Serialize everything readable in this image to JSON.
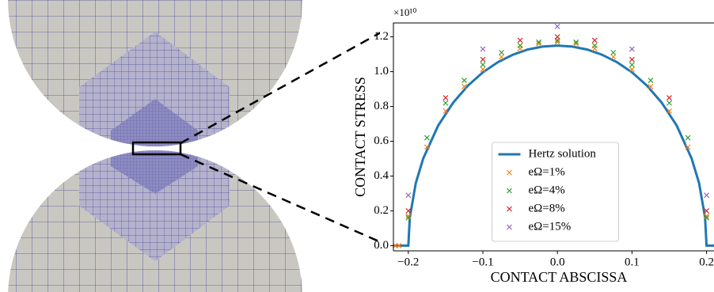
{
  "chart_data": {
    "type": "line",
    "xlabel": "CONTACT ABSCISSA",
    "ylabel": "CONTACT STRESS",
    "y_offset_label": "×10¹⁰",
    "xlim": [
      -0.22,
      0.21
    ],
    "ylim": [
      -0.03,
      1.28
    ],
    "xticks": [
      {
        "value": -0.2,
        "label": "−0.2"
      },
      {
        "value": -0.1,
        "label": "−0.1"
      },
      {
        "value": 0,
        "label": "0.0"
      },
      0.1,
      0.2
    ],
    "yticks": [
      {
        "value": 0,
        "label": "0.0"
      },
      0.2,
      0.4,
      0.6,
      0.8,
      {
        "value": 1,
        "label": "1.0"
      },
      1.2
    ],
    "legend": "lower center",
    "series": [
      {
        "name": "Hertz solution",
        "color": "#1f77b4",
        "style": "line",
        "x": [
          -0.22,
          -0.2,
          -0.198,
          -0.19,
          -0.18,
          -0.16,
          -0.14,
          -0.12,
          -0.1,
          -0.08,
          -0.06,
          -0.04,
          -0.02,
          0,
          0.02,
          0.04,
          0.06,
          0.08,
          0.1,
          0.12,
          0.14,
          0.16,
          0.18,
          0.19,
          0.198,
          0.2,
          0.21
        ],
        "values": [
          0,
          0,
          0.162,
          0.359,
          0.501,
          0.69,
          0.821,
          0.92,
          0.996,
          1.054,
          1.097,
          1.127,
          1.144,
          1.15,
          1.144,
          1.127,
          1.097,
          1.054,
          0.996,
          0.92,
          0.821,
          0.69,
          0.501,
          0.359,
          0.162,
          0,
          0
        ]
      },
      {
        "name": "eΩ=1%",
        "color": "#ff7f0e",
        "style": "x",
        "x": [
          -0.2175,
          -0.2125,
          -0.2,
          -0.175,
          -0.15,
          -0.125,
          -0.1,
          -0.075,
          -0.05,
          -0.025,
          0,
          0.025,
          0.05,
          0.075,
          0.1,
          0.125,
          0.15,
          0.175,
          0.2
        ],
        "values": [
          0,
          0,
          0.17,
          0.567,
          0.774,
          0.914,
          1.013,
          1.085,
          1.133,
          1.161,
          1.17,
          1.161,
          1.133,
          1.085,
          1.013,
          0.914,
          0.774,
          0.567,
          0.17
        ]
      },
      {
        "name": "eΩ=4%",
        "color": "#2ca02c",
        "style": "x",
        "x": [
          -0.2,
          -0.175,
          -0.15,
          -0.125,
          -0.1,
          -0.075,
          -0.05,
          -0.025,
          0,
          0.025,
          0.05,
          0.075,
          0.1,
          0.125,
          0.15,
          0.175,
          0.2
        ],
        "values": [
          0.16,
          0.62,
          0.82,
          0.95,
          1.04,
          1.11,
          1.15,
          1.17,
          1.18,
          1.17,
          1.15,
          1.11,
          1.04,
          0.95,
          0.82,
          0.62,
          0.16
        ]
      },
      {
        "name": "eΩ=8%",
        "color": "#d62728",
        "style": "x",
        "x": [
          -0.2,
          -0.15,
          -0.1,
          -0.05,
          0,
          0.05,
          0.1,
          0.15,
          0.2
        ],
        "values": [
          0.2,
          0.85,
          1.07,
          1.18,
          1.2,
          1.18,
          1.07,
          0.85,
          0.2
        ]
      },
      {
        "name": "eΩ=15%",
        "color": "#9467bd",
        "style": "x",
        "x": [
          -0.2,
          -0.1,
          0,
          0.1,
          0.2
        ],
        "values": [
          0.29,
          1.13,
          1.26,
          1.13,
          0.29
        ]
      }
    ]
  }
}
